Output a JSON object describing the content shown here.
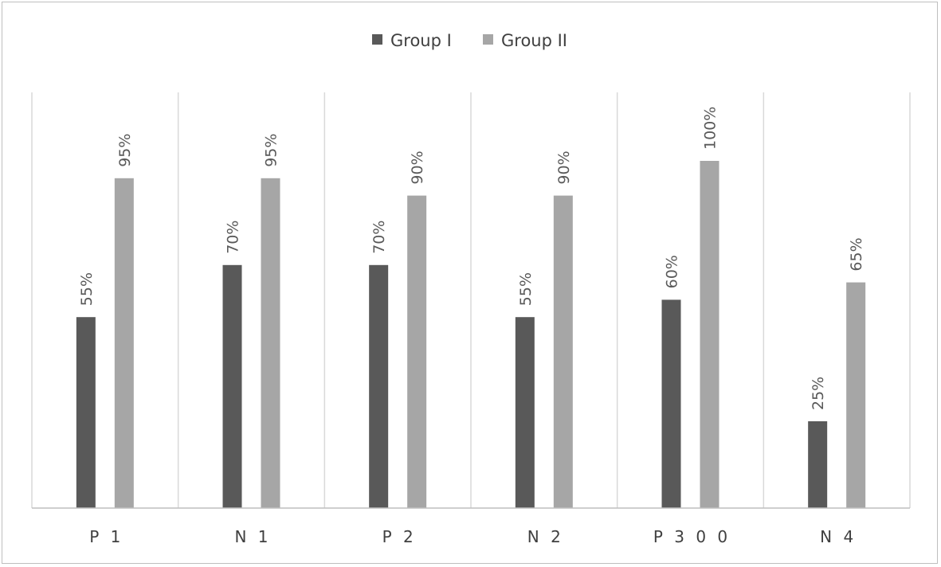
{
  "chart_data": {
    "type": "bar",
    "title": "",
    "xlabel": "",
    "ylabel": "",
    "categories": [
      "P1",
      "N1",
      "P2",
      "N2",
      "P300",
      "N4"
    ],
    "tick_labels": [
      "P 1",
      "N 1",
      "P 2",
      "N 2",
      "P 3 0 0",
      "N 4"
    ],
    "series": [
      {
        "name": "Group I",
        "color": "#595959",
        "values": [
          55,
          70,
          70,
          55,
          60,
          25
        ],
        "labels": [
          "55%",
          "70%",
          "70%",
          "55%",
          "60%",
          "25%"
        ]
      },
      {
        "name": "Group II",
        "color": "#a6a6a6",
        "values": [
          95,
          95,
          90,
          90,
          100,
          65
        ],
        "labels": [
          "95%",
          "95%",
          "90%",
          "90%",
          "100%",
          "65%"
        ]
      }
    ],
    "ylim": [
      0,
      100
    ],
    "unit": "%",
    "legend_position": "top",
    "grid": "vertical category separators",
    "data_labels": "rotated 90 degrees above bars"
  }
}
